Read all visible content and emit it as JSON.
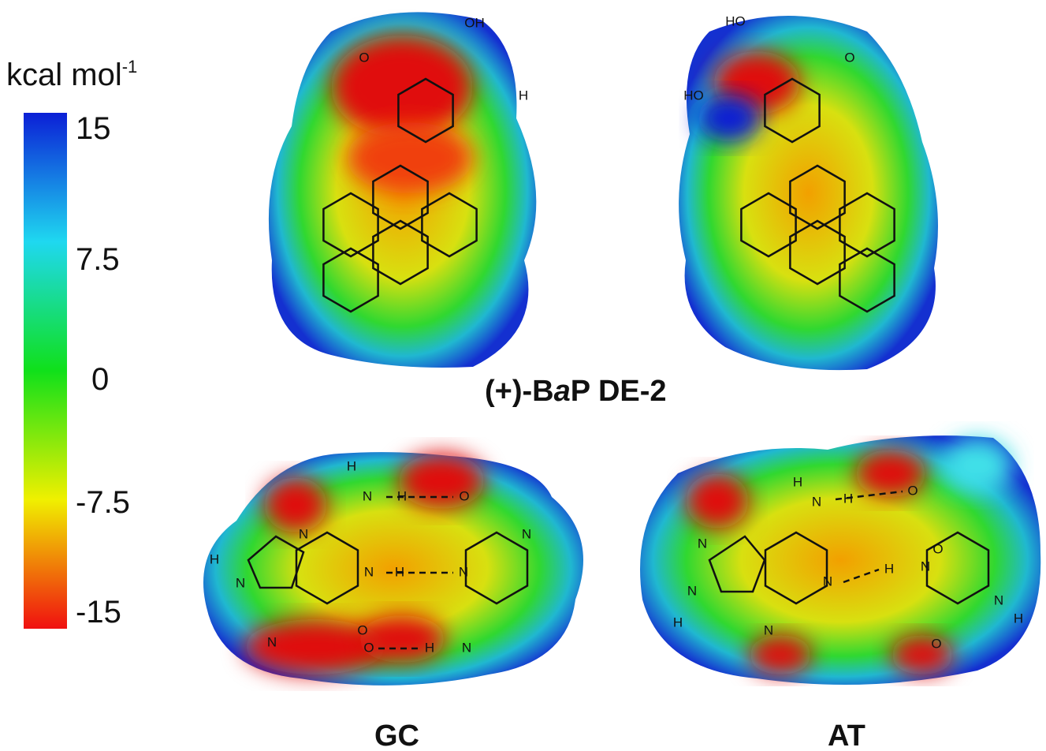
{
  "colorbar": {
    "unit": "kcal mol",
    "unit_exp": "-1",
    "ticks": [
      "15",
      "7.5",
      "0",
      "-7.5",
      "-15"
    ]
  },
  "bap": {
    "title_parts": [
      "(+)-B",
      "a",
      "P DE-2"
    ],
    "left_atoms": [
      "OH",
      "O",
      "H"
    ],
    "right_atoms": [
      "HO",
      "O",
      "HO"
    ]
  },
  "gc": {
    "label": "GC",
    "atoms": [
      "H",
      "N",
      "H",
      "O",
      "N",
      "N",
      "H",
      "N",
      "N",
      "H",
      "N",
      "N",
      "O",
      "O",
      "H",
      "N"
    ]
  },
  "at": {
    "label": "AT",
    "atoms": [
      "H",
      "N",
      "H",
      "O",
      "O",
      "N",
      "N",
      "H",
      "N",
      "N",
      "H",
      "N",
      "O",
      "N",
      "H"
    ]
  }
}
